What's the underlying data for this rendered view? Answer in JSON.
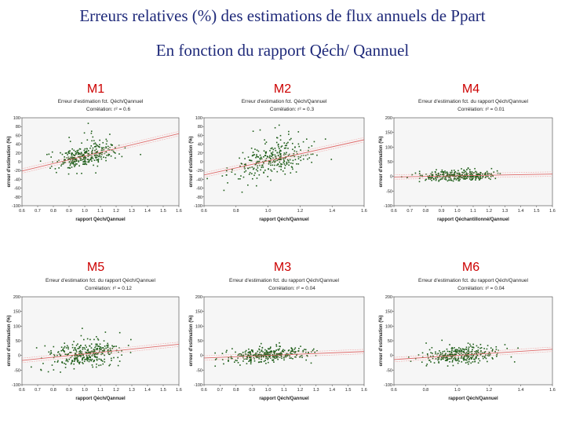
{
  "title": "Erreurs relatives (%) des estimations de flux annuels de Ppart",
  "subtitle": "En fonction du rapport Qéch/ Qannuel",
  "colors": {
    "title": "#1f2a7a",
    "label": "#cc0000",
    "point": "#1f5e1a",
    "fit": "#e06a6a",
    "ci": "#f2b8b8"
  },
  "chart_data": [
    {
      "method": "M1",
      "type": "scatter",
      "title": "Erreur d'estimation fct. Qéch/Qannuel",
      "correlation": "Corrélation: r² = 0.6",
      "xlabel": "rapport Qéch/Qannuel",
      "ylabel": "erreur d'estimation (%)",
      "xlim": [
        0.6,
        1.6
      ],
      "ylim": [
        -100,
        100
      ],
      "xticks": [
        "0.6",
        "0.7",
        "0.8",
        "0.9",
        "1.0",
        "1.1",
        "1.2",
        "1.3",
        "1.4",
        "1.5",
        "1.6"
      ],
      "yticks": [
        "100",
        "80",
        "60",
        "40",
        "20",
        "0",
        "-20",
        "-40",
        "-60",
        "-80",
        "-100"
      ],
      "fit": {
        "slope": 85,
        "intercept": -72
      },
      "points": {
        "n": 300,
        "xcenter": 1.0,
        "xspread": 0.1,
        "noise": 14,
        "seed": 11
      }
    },
    {
      "method": "M2",
      "type": "scatter",
      "title": "Erreur d'estimation fct. Qéch/Qannuel",
      "correlation": "Corrélation: r² = 0.3",
      "xlabel": "rapport Qéch/Qannuel",
      "ylabel": "erreur d'estimation (%)",
      "xlim": [
        0.6,
        1.6
      ],
      "ylim": [
        -100,
        100
      ],
      "xticks": [
        "0.6",
        "0.8",
        "1.0",
        "1.2",
        "1.4",
        "1.6"
      ],
      "yticks": [
        "100",
        "80",
        "60",
        "40",
        "20",
        "0",
        "-20",
        "-40",
        "-60",
        "-80",
        "-100"
      ],
      "fit": {
        "slope": 80,
        "intercept": -78
      },
      "points": {
        "n": 300,
        "xcenter": 1.02,
        "xspread": 0.11,
        "noise": 20,
        "seed": 23
      }
    },
    {
      "method": "M4",
      "type": "scatter",
      "title": "Erreur d'estimation fct. du rapport Qéch/Qannuel",
      "correlation": "Corrélation: r² = 0.01",
      "xlabel": "rapport Qéchantillonné/Qannuel",
      "ylabel": "erreur d'estimation (%)",
      "xlim": [
        0.6,
        1.6
      ],
      "ylim": [
        -100,
        200
      ],
      "xticks": [
        "0.6",
        "0.7",
        "0.8",
        "0.9",
        "1.0",
        "1.1",
        "1.2",
        "1.3",
        "1.4",
        "1.5",
        "1.6"
      ],
      "yticks": [
        "200",
        "150",
        "100",
        "50",
        "0",
        "-50",
        "-100"
      ],
      "fit": {
        "slope": 10,
        "intercept": -8
      },
      "points": {
        "n": 320,
        "xcenter": 1.0,
        "xspread": 0.12,
        "noise": 8,
        "seed": 37
      }
    },
    {
      "method": "M5",
      "type": "scatter",
      "title": "Erreur d'estimation fct. du rapport Qéch/Qannuel",
      "correlation": "Corrélation: r² = 0.12",
      "xlabel": "rapport Qéch/Qannuel",
      "ylabel": "erreur d'estimation (%)",
      "xlim": [
        0.6,
        1.6
      ],
      "ylim": [
        -100,
        200
      ],
      "xticks": [
        "0.6",
        "0.7",
        "0.8",
        "0.9",
        "1.0",
        "1.1",
        "1.2",
        "1.3",
        "1.4",
        "1.5",
        "1.6"
      ],
      "yticks": [
        "200",
        "150",
        "100",
        "50",
        "0",
        "-50",
        "-100"
      ],
      "fit": {
        "slope": 55,
        "intercept": -50
      },
      "points": {
        "n": 320,
        "xcenter": 1.0,
        "xspread": 0.12,
        "noise": 22,
        "seed": 53
      }
    },
    {
      "method": "M3",
      "type": "scatter",
      "title": "Erreur d'estimation fct. du rapport Qéch/Qannuel",
      "correlation": "Corrélation: r² = 0.04",
      "xlabel": "rapport Qéch/Qannuel",
      "ylabel": "erreur d'estimation (%)",
      "xlim": [
        0.6,
        1.6
      ],
      "ylim": [
        -100,
        200
      ],
      "xticks": [
        "0.6",
        "0.7",
        "0.8",
        "0.9",
        "1.0",
        "1.1",
        "1.2",
        "1.3",
        "1.4",
        "1.5",
        "1.6"
      ],
      "yticks": [
        "200",
        "150",
        "100",
        "50",
        "0",
        "-50",
        "-100"
      ],
      "fit": {
        "slope": 22,
        "intercept": -22
      },
      "points": {
        "n": 320,
        "xcenter": 1.0,
        "xspread": 0.13,
        "noise": 11,
        "seed": 71
      }
    },
    {
      "method": "M6",
      "type": "scatter",
      "title": "Erreur d'estimation fct. du rapport Qéch/Qannuel",
      "correlation": "Corrélation: r² = 0.04",
      "xlabel": "rapport Qéch/Qannuel",
      "ylabel": "erreur d'estimation (%)",
      "xlim": [
        0.6,
        1.6
      ],
      "ylim": [
        -100,
        200
      ],
      "xticks": [
        "0.6",
        "0.8",
        "1.0",
        "1.2",
        "1.4",
        "1.6"
      ],
      "yticks": [
        "200",
        "150",
        "100",
        "50",
        "0",
        "-50",
        "-100"
      ],
      "fit": {
        "slope": 35,
        "intercept": -35
      },
      "points": {
        "n": 320,
        "xcenter": 1.02,
        "xspread": 0.12,
        "noise": 14,
        "seed": 89
      }
    }
  ]
}
